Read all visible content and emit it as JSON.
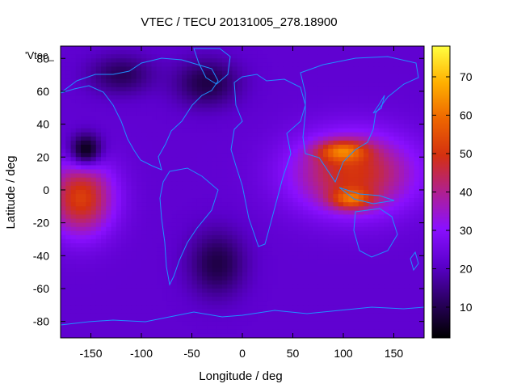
{
  "chart_data": {
    "type": "heatmap",
    "title": "VTEC / TECU 20131005_278.18900",
    "xlabel": "Longitude / deg",
    "ylabel": "Latitude / deg",
    "xlim": [
      -180,
      180
    ],
    "ylim": [
      -90,
      87.5
    ],
    "xticks": [
      -150,
      -100,
      -50,
      0,
      50,
      100,
      150
    ],
    "yticks": [
      -80,
      -60,
      -40,
      -20,
      0,
      20,
      40,
      60,
      80
    ],
    "colorbar": {
      "min": 2,
      "max": 78,
      "ticks": [
        10,
        20,
        30,
        40,
        50,
        60,
        70
      ],
      "stops": [
        "#000000",
        "#2a0060",
        "#5b00cc",
        "#8a10ff",
        "#b02090",
        "#d43010",
        "#ee6600",
        "#ffb000",
        "#ffff40"
      ]
    },
    "legend_key": "'Vtec_",
    "coastline_color": "#1e90ff",
    "regions": [
      {
        "lon": -160,
        "lat": -5,
        "rlon": 40,
        "rlat": 28,
        "value": 52
      },
      {
        "lon": 110,
        "lat": 10,
        "rlon": 75,
        "rlat": 30,
        "value": 50
      },
      {
        "lon": 100,
        "lat": 23,
        "rlon": 30,
        "rlat": 8,
        "value": 64
      },
      {
        "lon": 108,
        "lat": -5,
        "rlon": 25,
        "rlat": 8,
        "value": 62
      },
      {
        "lon": -155,
        "lat": 25,
        "rlon": 20,
        "rlat": 12,
        "value": 5
      },
      {
        "lon": -25,
        "lat": -45,
        "rlon": 35,
        "rlat": 25,
        "value": 9
      },
      {
        "lon": -35,
        "lat": 65,
        "rlon": 40,
        "rlat": 18,
        "value": 9
      },
      {
        "lon": -120,
        "lat": 70,
        "rlon": 40,
        "rlat": 15,
        "value": 11
      }
    ]
  }
}
